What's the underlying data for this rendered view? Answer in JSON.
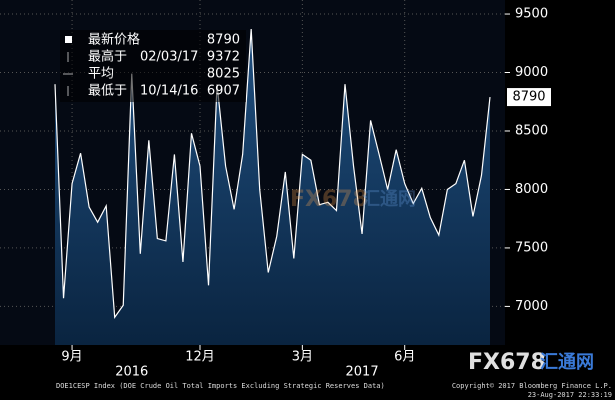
{
  "chart_data": {
    "type": "area",
    "legend": {
      "latest_label": "最新价格",
      "latest": 8790,
      "high_label": "最高于",
      "high_date": "02/03/17",
      "high": 9372,
      "avg_label": "平均",
      "avg": 8025,
      "low_label": "最低于",
      "low_date": "10/14/16",
      "low": 6907
    },
    "categories": [
      null,
      null,
      "9月",
      null,
      null,
      null,
      null,
      null,
      null,
      null,
      null,
      null,
      null,
      null,
      null,
      null,
      null,
      "12月",
      null,
      null,
      null,
      null,
      null,
      null,
      null,
      null,
      null,
      null,
      null,
      "3月",
      null,
      null,
      null,
      null,
      null,
      null,
      null,
      null,
      null,
      null,
      null,
      "6月",
      null,
      null,
      null,
      null,
      null,
      null,
      null,
      null,
      null,
      null
    ],
    "years": [
      null,
      null,
      null,
      null,
      null,
      null,
      null,
      null,
      null,
      "2016",
      null,
      null,
      null,
      null,
      null,
      null,
      null,
      null,
      null,
      null,
      null,
      null,
      null,
      null,
      null,
      null,
      null,
      null,
      null,
      null,
      null,
      null,
      null,
      null,
      null,
      null,
      "2017",
      null,
      null,
      null,
      null,
      null,
      null,
      null,
      null,
      null,
      null,
      null,
      null,
      null,
      null,
      null
    ],
    "series": [
      {
        "name": "DOE1CESP Index",
        "color": "#ffffff",
        "values": [
          8900,
          7070,
          8050,
          8310,
          7850,
          7720,
          7860,
          6907,
          7010,
          8990,
          7450,
          8420,
          7580,
          7560,
          8300,
          7380,
          8480,
          8200,
          7180,
          8900,
          8200,
          7830,
          8300,
          9372,
          8000,
          7290,
          7600,
          8150,
          7410,
          8300,
          8250,
          7870,
          7890,
          7820,
          8900,
          8200,
          7620,
          8590,
          8300,
          8000,
          8340,
          8050,
          7880,
          8010,
          7760,
          7610,
          8000,
          8050,
          8250,
          7770,
          8120,
          8790
        ]
      }
    ],
    "ylim": [
      6670,
      9620
    ],
    "yticks": [
      7000,
      7500,
      8000,
      8500,
      9000,
      9500
    ],
    "grid": true,
    "watermark": [
      "FX678",
      "汇通网"
    ],
    "footer": "DOE1CESP Index (DOE Crude Oil Total Imports Excluding Strategic Reserves Data)",
    "copyright": "Copyright© 2017 Bloomberg Finance L.P.",
    "timestamp": "23-Aug-2017 22:33:19"
  }
}
